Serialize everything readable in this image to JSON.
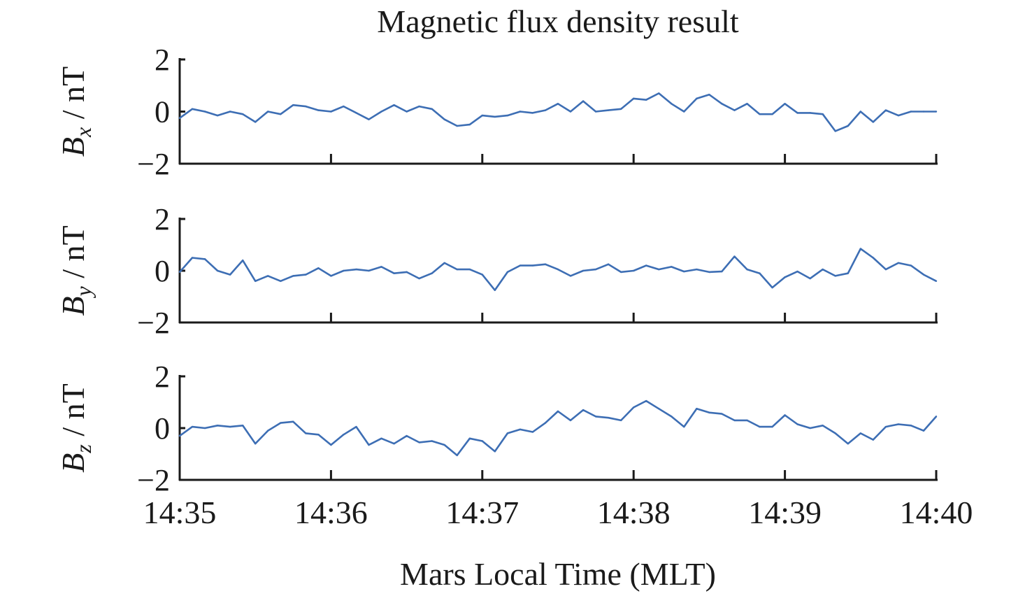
{
  "chart_data": {
    "type": "line",
    "title": "Magnetic flux density result",
    "xlabel": "Mars Local Time (MLT)",
    "x_unit": "seconds since 14:35",
    "xlim": [
      0,
      300
    ],
    "xticks": [
      0,
      60,
      120,
      180,
      240,
      300
    ],
    "xtick_labels": [
      "14:35",
      "14:36",
      "14:37",
      "14:38",
      "14:39",
      "14:40"
    ],
    "x": [
      0,
      5,
      10,
      15,
      20,
      25,
      30,
      35,
      40,
      45,
      50,
      55,
      60,
      65,
      70,
      75,
      80,
      85,
      90,
      95,
      100,
      105,
      110,
      115,
      120,
      125,
      130,
      135,
      140,
      145,
      150,
      155,
      160,
      165,
      170,
      175,
      180,
      185,
      190,
      195,
      200,
      205,
      210,
      215,
      220,
      225,
      230,
      235,
      240,
      245,
      250,
      255,
      260,
      265,
      270,
      275,
      280,
      285,
      290,
      295,
      300
    ],
    "line_color": "#3d6eb4",
    "panels": [
      {
        "ylabel_main": "B",
        "ylabel_sub": "x",
        "ylabel_unit": " / nT",
        "ylim": [
          -2,
          2
        ],
        "yticks": [
          2,
          0,
          -2
        ],
        "ytick_labels": [
          "2",
          "0",
          "−2"
        ],
        "values": [
          -0.25,
          0.1,
          0,
          -0.15,
          0,
          -0.1,
          -0.4,
          0,
          -0.1,
          0.25,
          0.2,
          0.05,
          0,
          0.2,
          -0.05,
          -0.3,
          0,
          0.25,
          0,
          0.2,
          0.1,
          -0.3,
          -0.55,
          -0.5,
          -0.15,
          -0.2,
          -0.15,
          0,
          -0.05,
          0.05,
          0.3,
          0,
          0.4,
          0,
          0.05,
          0.1,
          0.5,
          0.45,
          0.7,
          0.3,
          0,
          0.5,
          0.65,
          0.3,
          0.05,
          0.3,
          -0.1,
          -0.1,
          0.3,
          -0.05,
          -0.05,
          -0.1,
          -0.75,
          -0.55,
          0,
          -0.4,
          0.05,
          -0.15,
          0,
          0,
          0
        ]
      },
      {
        "ylabel_main": "B",
        "ylabel_sub": "y",
        "ylabel_unit": " / nT",
        "ylim": [
          -2,
          2
        ],
        "yticks": [
          2,
          0,
          -2
        ],
        "ytick_labels": [
          "2",
          "0",
          "−2"
        ],
        "values": [
          -0.05,
          0.5,
          0.45,
          0,
          -0.15,
          0.4,
          -0.4,
          -0.2,
          -0.4,
          -0.2,
          -0.15,
          0.1,
          -0.2,
          0,
          0.05,
          0,
          0.15,
          -0.1,
          -0.05,
          -0.3,
          -0.1,
          0.3,
          0.05,
          0.05,
          -0.15,
          -0.75,
          -0.05,
          0.2,
          0.2,
          0.25,
          0.05,
          -0.2,
          0,
          0.05,
          0.25,
          -0.05,
          0,
          0.2,
          0.05,
          0.15,
          -0.03,
          0.05,
          -0.05,
          -0.03,
          0.55,
          0.05,
          -0.1,
          -0.65,
          -0.25,
          -0.03,
          -0.3,
          0.05,
          -0.2,
          -0.1,
          0.85,
          0.5,
          0.05,
          0.3,
          0.2,
          -0.15,
          -0.4
        ]
      },
      {
        "ylabel_main": "B",
        "ylabel_sub": "z",
        "ylabel_unit": " / nT",
        "ylim": [
          -2,
          2
        ],
        "yticks": [
          2,
          0,
          -2
        ],
        "ytick_labels": [
          "2",
          "0",
          "−2"
        ],
        "values": [
          -0.3,
          0.05,
          0,
          0.1,
          0.05,
          0.1,
          -0.6,
          -0.1,
          0.2,
          0.25,
          -0.2,
          -0.25,
          -0.65,
          -0.25,
          0.05,
          -0.65,
          -0.4,
          -0.6,
          -0.3,
          -0.55,
          -0.5,
          -0.65,
          -1.05,
          -0.4,
          -0.5,
          -0.9,
          -0.2,
          -0.05,
          -0.15,
          0.2,
          0.65,
          0.3,
          0.7,
          0.45,
          0.4,
          0.3,
          0.8,
          1.05,
          0.75,
          0.45,
          0.05,
          0.75,
          0.6,
          0.55,
          0.3,
          0.3,
          0.05,
          0.05,
          0.5,
          0.15,
          0,
          0.1,
          -0.2,
          -0.6,
          -0.2,
          -0.45,
          0.05,
          0.15,
          0.1,
          -0.1,
          0.45
        ]
      }
    ]
  }
}
